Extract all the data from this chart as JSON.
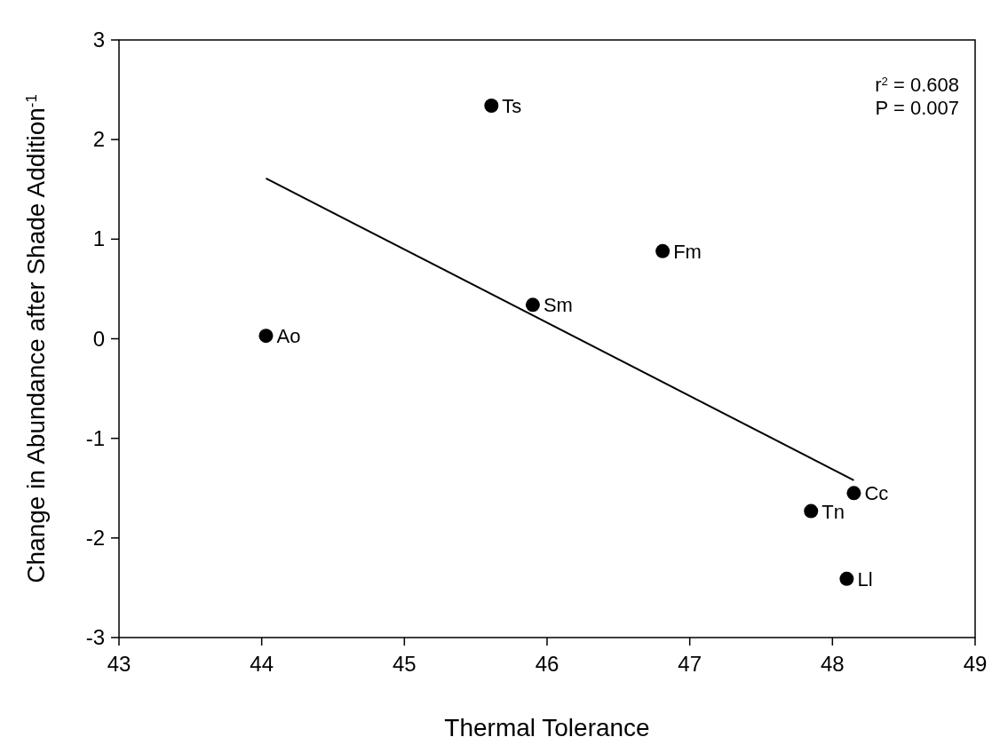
{
  "chart_data": {
    "type": "scatter",
    "xlabel": "Thermal Tolerance",
    "ylabel": "Change in Abundance after Shade Addition$^{-1}$",
    "xlim": [
      43,
      49
    ],
    "xticks": [
      43,
      44,
      45,
      46,
      47,
      48,
      49
    ],
    "ylim": [
      -3,
      3
    ],
    "yticks": [
      -3,
      -2,
      -1,
      0,
      1,
      2,
      3
    ],
    "grid": false,
    "series": [
      {
        "marker": "circle",
        "color": "#000000",
        "x": [
          44.03,
          45.61,
          45.9,
          46.81,
          48.15,
          47.85,
          48.1
        ],
        "values": [
          0.03,
          2.34,
          0.34,
          0.88,
          -1.55,
          -1.73,
          -2.41
        ]
      },
      {
        "type": "line",
        "marker": "none",
        "color": "#000000",
        "x": [
          44.03,
          48.15
        ],
        "values": [
          1.61,
          -1.42
        ]
      }
    ],
    "annotations": [
      {
        "text": "Ao",
        "x": 44.03,
        "y": 0.03
      },
      {
        "text": "Ts",
        "x": 45.61,
        "y": 2.34
      },
      {
        "text": "Sm",
        "x": 45.9,
        "y": 0.34
      },
      {
        "text": "Fm",
        "x": 46.81,
        "y": 0.88
      },
      {
        "text": "Cc",
        "x": 48.15,
        "y": -1.55
      },
      {
        "text": "Tn",
        "x": 47.85,
        "y": -1.73
      },
      {
        "text": "Ll",
        "x": 48.1,
        "y": -2.41
      },
      "r$^{2}$ = 0.608",
      "P = 0.007"
    ]
  }
}
